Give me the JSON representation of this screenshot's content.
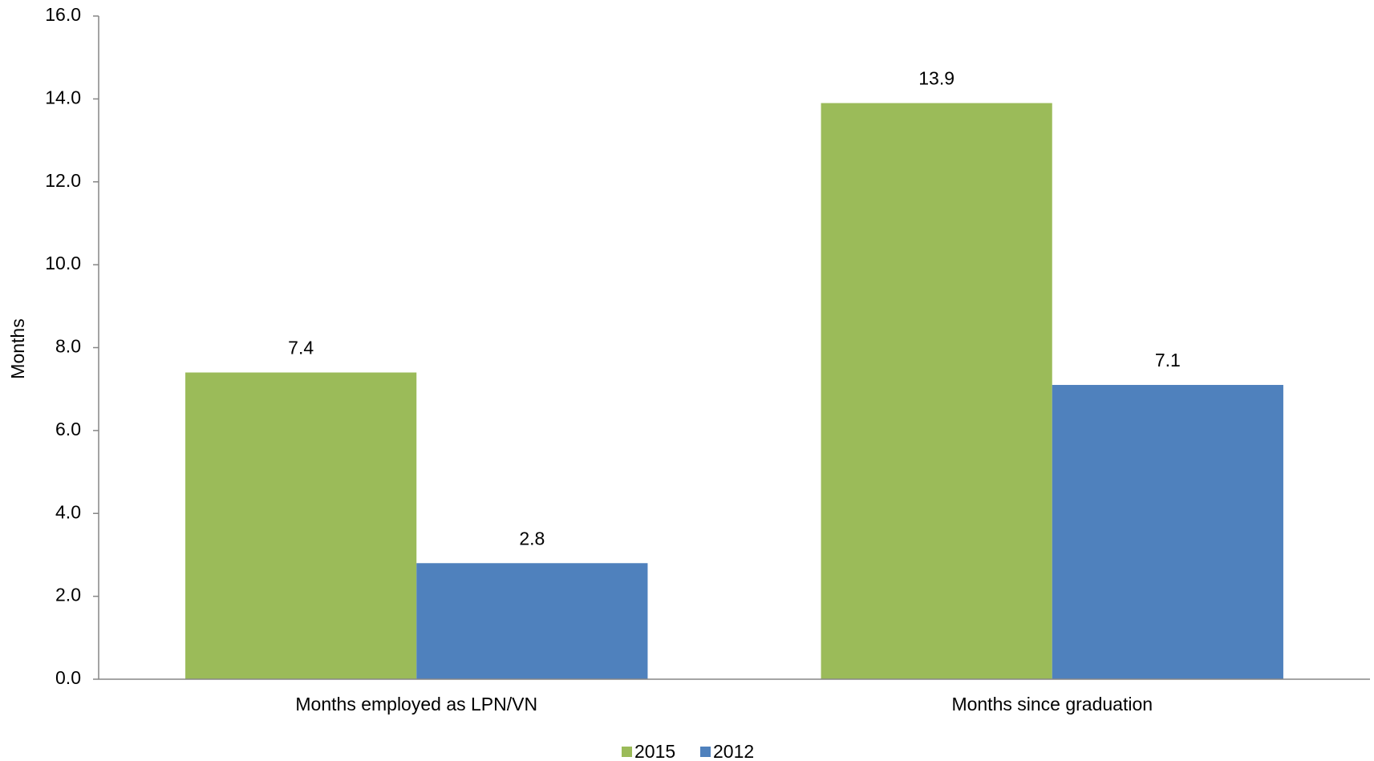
{
  "chart_data": {
    "type": "bar",
    "y_label": "Months",
    "categories": [
      "Months employed as LPN/VN",
      "Months since graduation"
    ],
    "series": [
      {
        "name": "2015",
        "color": "#9bbb59",
        "values": [
          7.4,
          13.9
        ]
      },
      {
        "name": "2012",
        "color": "#4f81bd",
        "values": [
          2.8,
          7.1
        ]
      }
    ],
    "ylim": [
      0,
      16
    ],
    "yticks": [
      {
        "value": 0,
        "label": "0.0"
      },
      {
        "value": 2,
        "label": "2.0"
      },
      {
        "value": 4,
        "label": "4.0"
      },
      {
        "value": 6,
        "label": "6.0"
      },
      {
        "value": 8,
        "label": "8.0"
      },
      {
        "value": 10,
        "label": "10.0"
      },
      {
        "value": 12,
        "label": "12.0"
      },
      {
        "value": 14,
        "label": "14.0"
      },
      {
        "value": 16,
        "label": "16.0"
      }
    ],
    "grid": false,
    "legend": "bottom"
  }
}
